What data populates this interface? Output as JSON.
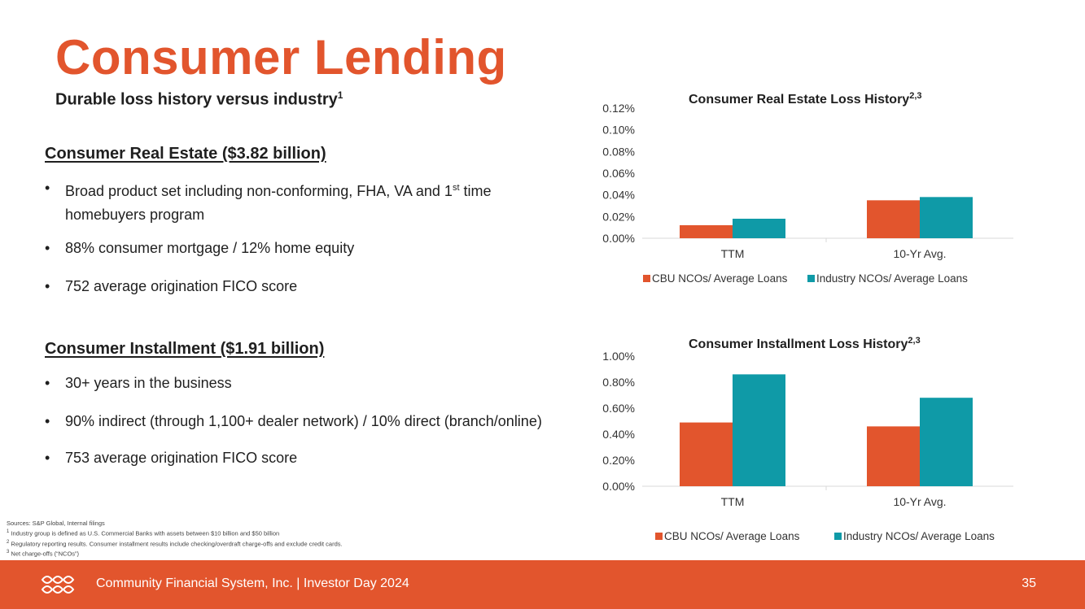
{
  "title": "Consumer Lending",
  "subtitle": {
    "text": "Durable loss history versus industry",
    "sup": "1"
  },
  "sections": [
    {
      "heading": "Consumer Real Estate ($3.82 billion)",
      "bullets": [
        {
          "pre": "Broad product set including non-conforming, FHA, VA and 1",
          "sup": "st",
          "post": " time homebuyers program"
        },
        {
          "pre": "88% consumer mortgage / 12% home equity"
        },
        {
          "pre": "752 average origination FICO score"
        }
      ]
    },
    {
      "heading": "Consumer Installment ($1.91 billion)",
      "bullets": [
        {
          "pre": "30+ years in the business"
        },
        {
          "pre": "90% indirect (through 1,100+ dealer network) / 10% direct (branch/online)"
        },
        {
          "pre": "753 average origination FICO score"
        }
      ]
    }
  ],
  "bullet_char": "•",
  "footnotes": [
    {
      "sup": "",
      "text": "Sources: S&P Global, Internal filings"
    },
    {
      "sup": "1",
      "text": " Industry group is defined as U.S. Commercial Banks with assets between $10 billion and $50 billion"
    },
    {
      "sup": "2",
      "text": " Regulatory reporting results. Consumer installment results include checking/overdraft charge-offs and exclude credit cards."
    },
    {
      "sup": "3",
      "text": " Net charge-offs (“NCOs”)"
    }
  ],
  "footer": {
    "text": "Community Financial System, Inc.  |  Investor Day 2024",
    "page": "35",
    "logo_icon": "interlocking-rings-logo-icon"
  },
  "colors": {
    "accent": "#e2552d",
    "cbu": "#e2552d",
    "industry": "#0f9aa7"
  },
  "chart_data": [
    {
      "type": "bar",
      "title": "Consumer Real Estate Loss History",
      "title_sup": "2,3",
      "categories": [
        "TTM",
        "10-Yr Avg."
      ],
      "series": [
        {
          "name": "CBU NCOs/ Average Loans",
          "values": [
            0.012,
            0.035
          ]
        },
        {
          "name": "Industry NCOs/ Average Loans",
          "values": [
            0.018,
            0.038
          ]
        }
      ],
      "ylim": [
        0,
        0.12
      ],
      "yticks": [
        "0.00%",
        "0.02%",
        "0.04%",
        "0.06%",
        "0.08%",
        "0.10%",
        "0.12%"
      ],
      "legend": "bottom",
      "grid": false
    },
    {
      "type": "bar",
      "title": "Consumer Installment Loss History",
      "title_sup": "2,3",
      "categories": [
        "TTM",
        "10-Yr Avg."
      ],
      "series": [
        {
          "name": "CBU NCOs/ Average Loans",
          "values": [
            0.49,
            0.46
          ]
        },
        {
          "name": "Industry NCOs/ Average Loans",
          "values": [
            0.86,
            0.68
          ]
        }
      ],
      "ylim": [
        0,
        1.0
      ],
      "yticks": [
        "0.00%",
        "0.20%",
        "0.40%",
        "0.60%",
        "0.80%",
        "1.00%"
      ],
      "legend": "bottom",
      "grid": false
    }
  ]
}
